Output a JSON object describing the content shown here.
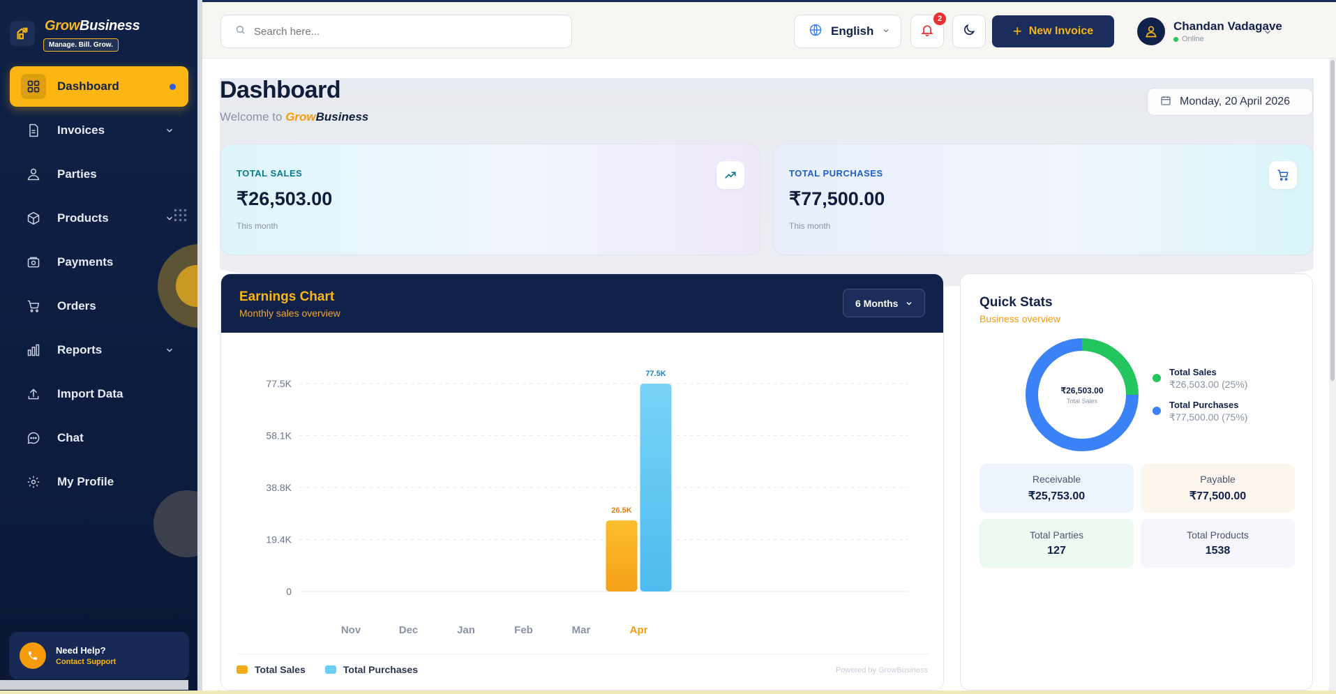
{
  "brand": {
    "name_part1": "Grow",
    "name_part2": "Business",
    "tagline": "Manage. Bill. Grow."
  },
  "sidebar": {
    "items": [
      {
        "label": "Dashboard",
        "icon": "grid-icon",
        "active": true
      },
      {
        "label": "Invoices",
        "icon": "document-icon",
        "expandable": true
      },
      {
        "label": "Parties",
        "icon": "people-icon"
      },
      {
        "label": "Products",
        "icon": "box-icon",
        "expandable": true
      },
      {
        "label": "Payments",
        "icon": "wallet-icon"
      },
      {
        "label": "Orders",
        "icon": "cart-icon"
      },
      {
        "label": "Reports",
        "icon": "bar-chart-icon",
        "expandable": true
      },
      {
        "label": "Import Data",
        "icon": "upload-icon"
      },
      {
        "label": "Chat",
        "icon": "chat-icon"
      },
      {
        "label": "My Profile",
        "icon": "gear-icon"
      }
    ],
    "help": {
      "title": "Need Help?",
      "link": "Contact Support"
    }
  },
  "topbar": {
    "search_placeholder": "Search here...",
    "language": "English",
    "notification_count": "2",
    "new_invoice_label": "New Invoice",
    "user": {
      "name": "Chandan Vadagave",
      "status": "Online"
    }
  },
  "page": {
    "title": "Dashboard",
    "welcome_prefix": "Welcome to",
    "welcome_brand1": "Grow",
    "welcome_brand2": "Business",
    "date": "Monday, 20 April 2026"
  },
  "stats": {
    "sales": {
      "label": "TOTAL SALES",
      "value": "₹26,503.00",
      "sub": "This month"
    },
    "purchases": {
      "label": "TOTAL PURCHASES",
      "value": "₹77,500.00",
      "sub": "This month"
    }
  },
  "earnings": {
    "title": "Earnings Chart",
    "subtitle": "Monthly sales overview",
    "period": "6 Months",
    "legend_sales": "Total Sales",
    "legend_purchases": "Total Purchases",
    "powered": "Powered by GrowBusiness"
  },
  "chart_data": {
    "type": "bar",
    "categories": [
      "Nov",
      "Dec",
      "Jan",
      "Feb",
      "Mar",
      "Apr"
    ],
    "highlight_category": "Apr",
    "series": [
      {
        "name": "Total Sales",
        "values": [
          0,
          0,
          0,
          0,
          0,
          26503
        ],
        "color": "#f5aa1c",
        "labels": [
          "",
          "",
          "",
          "",
          "",
          "26.5K"
        ]
      },
      {
        "name": "Total Purchases",
        "values": [
          0,
          0,
          0,
          0,
          0,
          77500
        ],
        "color": "#5cc4f2",
        "labels": [
          "",
          "",
          "",
          "",
          "",
          "77.5K"
        ]
      }
    ],
    "y_ticks": [
      0,
      19375,
      38750,
      58125,
      77500
    ],
    "y_tick_labels": [
      "0",
      "19.4K",
      "38.8K",
      "58.1K",
      "77.5K"
    ],
    "ylim": [
      0,
      77500
    ],
    "grid": true,
    "legend": "bottom-left"
  },
  "quick_stats": {
    "title": "Quick Stats",
    "subtitle": "Business overview",
    "donut_center_value": "₹26,503.00",
    "donut_center_label": "Total Sales",
    "donut": [
      {
        "name": "Total Sales",
        "value": "₹26,503.00 (25%)",
        "share": 0.25,
        "color": "#22c55e"
      },
      {
        "name": "Total Purchases",
        "value": "₹77,500.00 (75%)",
        "share": 0.75,
        "color": "#3b82f6"
      }
    ],
    "tiles": [
      {
        "label": "Receivable",
        "value": "₹25,753.00",
        "bg": "#eef4fb"
      },
      {
        "label": "Payable",
        "value": "₹77,500.00",
        "bg": "#fcf6ee"
      },
      {
        "label": "Total Parties",
        "value": "127",
        "bg": "#eef9f2"
      },
      {
        "label": "Total Products",
        "value": "1538",
        "bg": "#f5f5fb"
      }
    ]
  }
}
